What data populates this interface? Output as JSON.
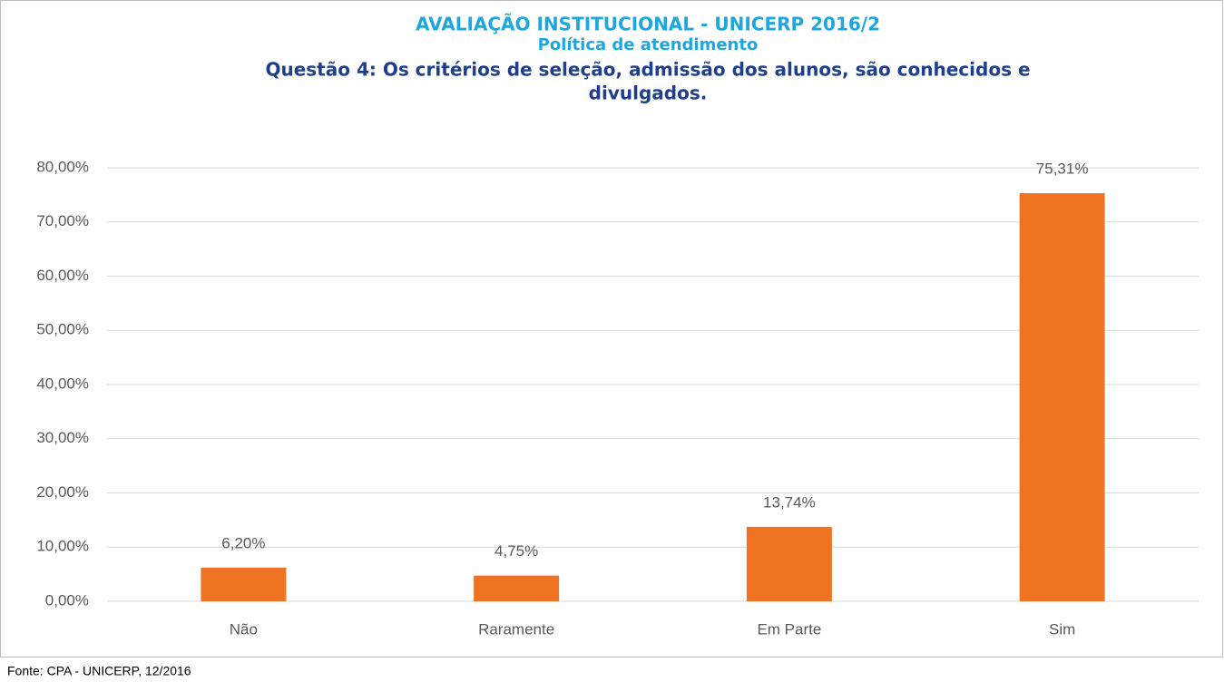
{
  "chart_data": {
    "type": "bar",
    "title": "AVALIAÇÃO INSTITUCIONAL - UNICERP 2016/2",
    "subtitle": "Política de atendimento",
    "question": [
      "Questão 4: Os critérios de seleção, admissão dos alunos, são conhecidos e",
      "divulgados."
    ],
    "categories": [
      "Não",
      "Raramente",
      "Em Parte",
      "Sim"
    ],
    "values": [
      6.2,
      4.75,
      13.74,
      75.31
    ],
    "value_labels": [
      "6,20%",
      "4,75%",
      "13,74%",
      "75,31%"
    ],
    "color": "#f07323",
    "ylim": [
      0,
      80
    ],
    "yticks": [
      {
        "value": 0,
        "label": "0,00%"
      },
      {
        "value": 10,
        "label": "10,00%"
      },
      {
        "value": 20,
        "label": "20,00%"
      },
      {
        "value": 30,
        "label": "30,00%"
      },
      {
        "value": 40,
        "label": "40,00%"
      },
      {
        "value": 50,
        "label": "50,00%"
      },
      {
        "value": 60,
        "label": "60,00%"
      },
      {
        "value": 70,
        "label": "70,00%"
      },
      {
        "value": 80,
        "label": "80,00%"
      }
    ],
    "grid": true,
    "source": "Fonte: CPA - UNICERP, 12/2016"
  }
}
